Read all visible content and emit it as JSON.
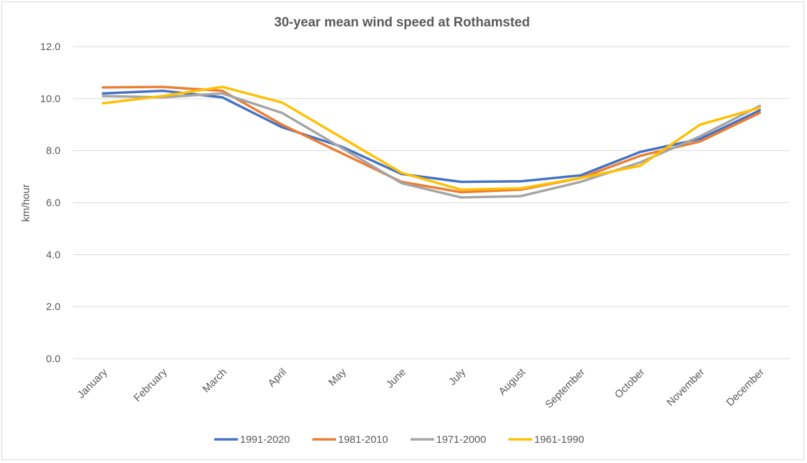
{
  "chart_data": {
    "type": "line",
    "title": "30-year mean wind speed at Rothamsted",
    "xlabel": "",
    "ylabel": "km/hour",
    "ylim": [
      0,
      12
    ],
    "yticks": [
      "0.0",
      "2.0",
      "4.0",
      "6.0",
      "8.0",
      "10.0",
      "12.0"
    ],
    "grid": true,
    "legend_position": "bottom",
    "categories": [
      "January",
      "February",
      "March",
      "April",
      "May",
      "June",
      "July",
      "August",
      "September",
      "October",
      "November",
      "December"
    ],
    "series": [
      {
        "name": "1991-2020",
        "color": "#4472c4",
        "values": [
          10.2,
          10.3,
          10.05,
          8.9,
          8.15,
          7.1,
          6.8,
          6.82,
          7.05,
          7.95,
          8.45,
          9.55
        ]
      },
      {
        "name": "1981-2010",
        "color": "#ed7d31",
        "values": [
          10.43,
          10.45,
          10.3,
          9.0,
          7.9,
          6.8,
          6.4,
          6.5,
          6.95,
          7.8,
          8.35,
          9.45
        ]
      },
      {
        "name": "1971-2000",
        "color": "#a5a5a5",
        "values": [
          10.1,
          10.05,
          10.2,
          9.45,
          8.1,
          6.75,
          6.2,
          6.25,
          6.8,
          7.55,
          8.55,
          9.72
        ]
      },
      {
        "name": "1961-1990",
        "color": "#ffc000",
        "values": [
          9.82,
          10.1,
          10.45,
          9.85,
          8.5,
          7.15,
          6.5,
          6.55,
          6.95,
          7.42,
          9.0,
          9.65
        ]
      }
    ]
  }
}
